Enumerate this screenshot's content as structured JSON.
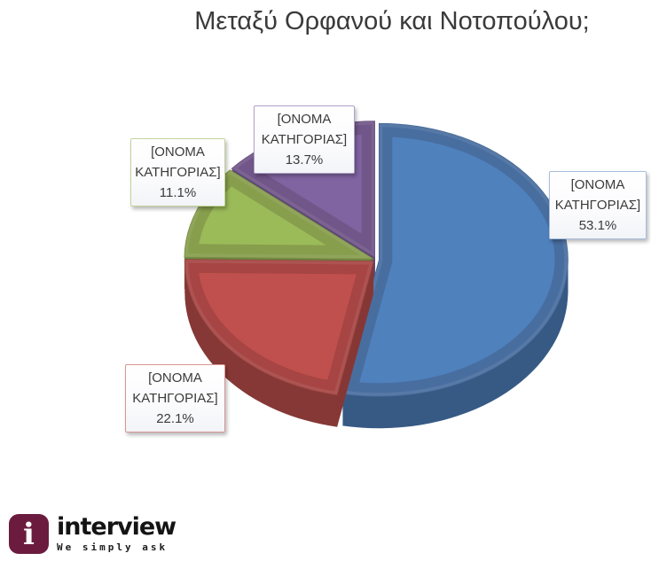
{
  "title": "Μεταξύ Ορφανού και Νοτοπούλου;",
  "chart_data": {
    "type": "pie",
    "title": "Μεταξύ Ορφανού και Νοτοπούλου;",
    "style": "3d-exploded",
    "start_angle_deg": 0,
    "direction": "clockwise",
    "legend": "none",
    "data_label_format": "[category name] + percentage",
    "categories": [
      "[ΟΝΟΜΑ ΚΑΤΗΓΟΡΙΑΣ]",
      "[ΟΝΟΜΑ ΚΑΤΗΓΟΡΙΑΣ]",
      "[ΟΝΟΜΑ ΚΑΤΗΓΟΡΙΑΣ]",
      "[ΟΝΟΜΑ ΚΑΤΗΓΟΡΙΑΣ]"
    ],
    "values": [
      53.1,
      22.1,
      11.1,
      13.7
    ],
    "slices": [
      {
        "label": "[ΟΝΟΜΑ ΚΑΤΗΓΟΡΙΑΣ]",
        "value_pct": 53.1,
        "color": "#4f81bd",
        "callout_border": "#a7bfde",
        "callout_lines": [
          "[ΟΝΟΜΑ",
          "ΚΑΤΗΓΟΡΙΑΣ]",
          "53.1%"
        ]
      },
      {
        "label": "[ΟΝΟΜΑ ΚΑΤΗΓΟΡΙΑΣ]",
        "value_pct": 22.1,
        "color": "#c0504d",
        "callout_border": "#d89795",
        "callout_lines": [
          "[ΟΝΟΜΑ",
          "ΚΑΤΗΓΟΡΙΑΣ]",
          "22.1%"
        ]
      },
      {
        "label": "[ΟΝΟΜΑ ΚΑΤΗΓΟΡΙΑΣ]",
        "value_pct": 11.1,
        "color": "#9bbb59",
        "callout_border": "#c2d59b",
        "callout_lines": [
          "[ΟΝΟΜΑ",
          "ΚΑΤΗΓΟΡΙΑΣ]",
          "11.1%"
        ]
      },
      {
        "label": "[ΟΝΟΜΑ ΚΑΤΗΓΟΡΙΑΣ]",
        "value_pct": 13.7,
        "color": "#8064a2",
        "callout_border": "#b2a1c7",
        "callout_lines": [
          "[ΟΝΟΜΑ",
          "ΚΑΤΗΓΟΡΙΑΣ]",
          "13.7%"
        ]
      }
    ]
  },
  "logo": {
    "icon_letter": "i",
    "icon_bg": "#6b1c3e",
    "brand": "interview",
    "tagline": "We simply ask"
  }
}
